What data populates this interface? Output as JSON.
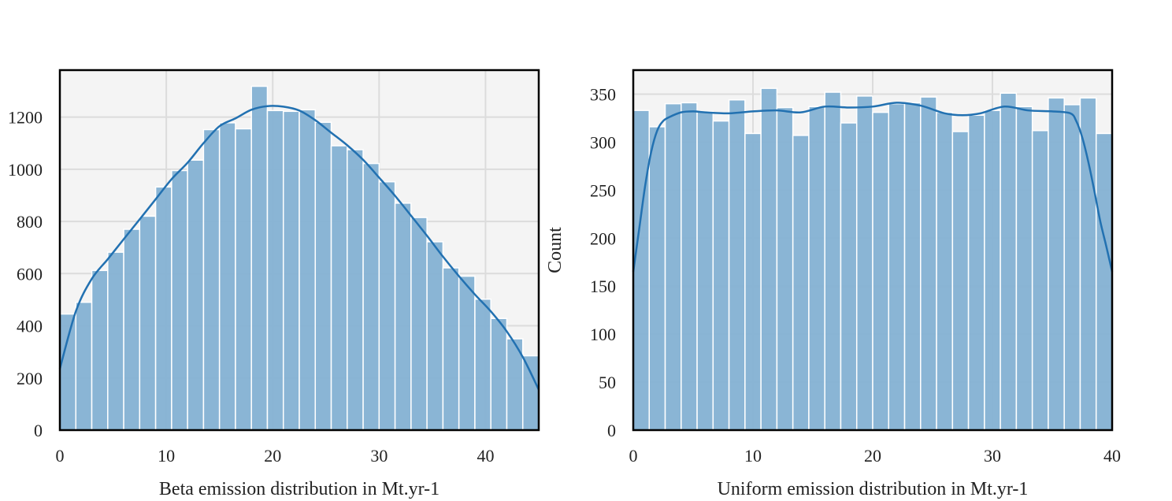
{
  "colors": {
    "plot_background": "#f4f4f4",
    "grid": "#dcdcdc",
    "bar_fill": "#84b1d3",
    "bar_edge": "#ffffff",
    "kde_line": "#2271b1",
    "frame": "#000000"
  },
  "chart_data": [
    {
      "type": "bar",
      "subtype": "histogram-with-kde",
      "title": "",
      "xlabel": "Beta emission distribution in Mt.yr-1",
      "ylabel": "",
      "xlim": [
        0,
        45
      ],
      "ylim": [
        0,
        1380
      ],
      "xticks": [
        0,
        10,
        20,
        30,
        40
      ],
      "yticks": [
        0,
        200,
        400,
        600,
        800,
        1000,
        1200
      ],
      "grid": true,
      "bin_width": 1.5,
      "bin_start": 0,
      "counts": [
        445,
        490,
        612,
        682,
        770,
        820,
        932,
        995,
        1035,
        1152,
        1178,
        1155,
        1318,
        1225,
        1222,
        1228,
        1180,
        1090,
        1075,
        1022,
        952,
        870,
        815,
        722,
        622,
        590,
        502,
        428,
        350,
        285
      ],
      "kde": {
        "x": [
          0,
          1.5,
          3,
          4.5,
          6,
          7.5,
          9,
          10.5,
          12,
          13.5,
          15,
          16.5,
          18,
          19.5,
          21,
          22.5,
          24,
          25.5,
          27,
          28.5,
          30,
          31.5,
          33,
          34.5,
          36,
          37.5,
          39,
          40.5,
          42,
          43.5,
          45
        ],
        "y": [
          235,
          455,
          580,
          655,
          732,
          808,
          885,
          962,
          1025,
          1100,
          1165,
          1195,
          1228,
          1242,
          1240,
          1225,
          1188,
          1140,
          1092,
          1036,
          968,
          898,
          822,
          745,
          665,
          590,
          520,
          455,
          378,
          280,
          155
        ]
      }
    },
    {
      "type": "bar",
      "subtype": "histogram-with-kde",
      "title": "",
      "xlabel": "Uniform emission distribution in Mt.yr-1",
      "ylabel": "Count",
      "xlim": [
        0,
        40
      ],
      "ylim": [
        0,
        375
      ],
      "xticks": [
        0,
        10,
        20,
        30,
        40
      ],
      "yticks": [
        0,
        50,
        100,
        150,
        200,
        250,
        300,
        350
      ],
      "grid": true,
      "bin_width": 1.3333,
      "bin_start": 0,
      "counts": [
        333,
        316,
        340,
        341,
        332,
        322,
        344,
        309,
        356,
        336,
        307,
        337,
        352,
        320,
        348,
        331,
        340,
        341,
        347,
        331,
        311,
        328,
        333,
        351,
        337,
        312,
        346,
        339,
        346,
        309
      ],
      "kde": {
        "x": [
          0,
          0.5,
          1,
          1.5,
          2,
          2.5,
          3,
          4,
          5,
          6,
          8,
          10,
          12,
          14,
          16,
          18,
          20,
          22,
          24,
          26,
          27.5,
          29,
          31,
          33,
          35,
          36.5,
          37,
          37.5,
          38,
          38.5,
          39,
          39.5,
          40
        ],
        "y": [
          165,
          210,
          255,
          290,
          312,
          322,
          326,
          331,
          332,
          331,
          330,
          332,
          333,
          331,
          337,
          336,
          337,
          341,
          338,
          330,
          328,
          330,
          337,
          333,
          332,
          330,
          322,
          305,
          280,
          250,
          218,
          192,
          165
        ]
      }
    }
  ]
}
